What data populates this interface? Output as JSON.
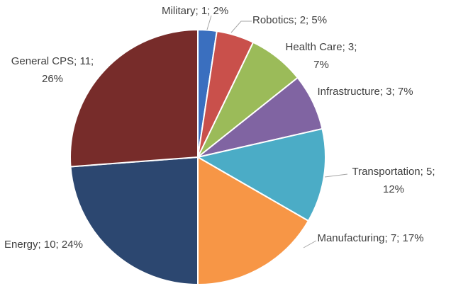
{
  "chart_data": {
    "type": "pie",
    "values": [
      1,
      2,
      3,
      3,
      5,
      7,
      10,
      11
    ],
    "value_labels": [
      "Military; 1; 2%",
      "Robotics; 2; 5%",
      "Health Care; 3; 7%",
      "Infrastructure; 3; 7%",
      "Transportation; 5; 12%",
      "Manufacturing; 7; 17%",
      "Energy; 10; 24%",
      "General CPS; 11; 26%"
    ],
    "colors": [
      "#3a6fbf",
      "#c9504b",
      "#9bbb59",
      "#8064a2",
      "#4bacc6",
      "#f79646",
      "#2c4770",
      "#772c2a"
    ]
  }
}
